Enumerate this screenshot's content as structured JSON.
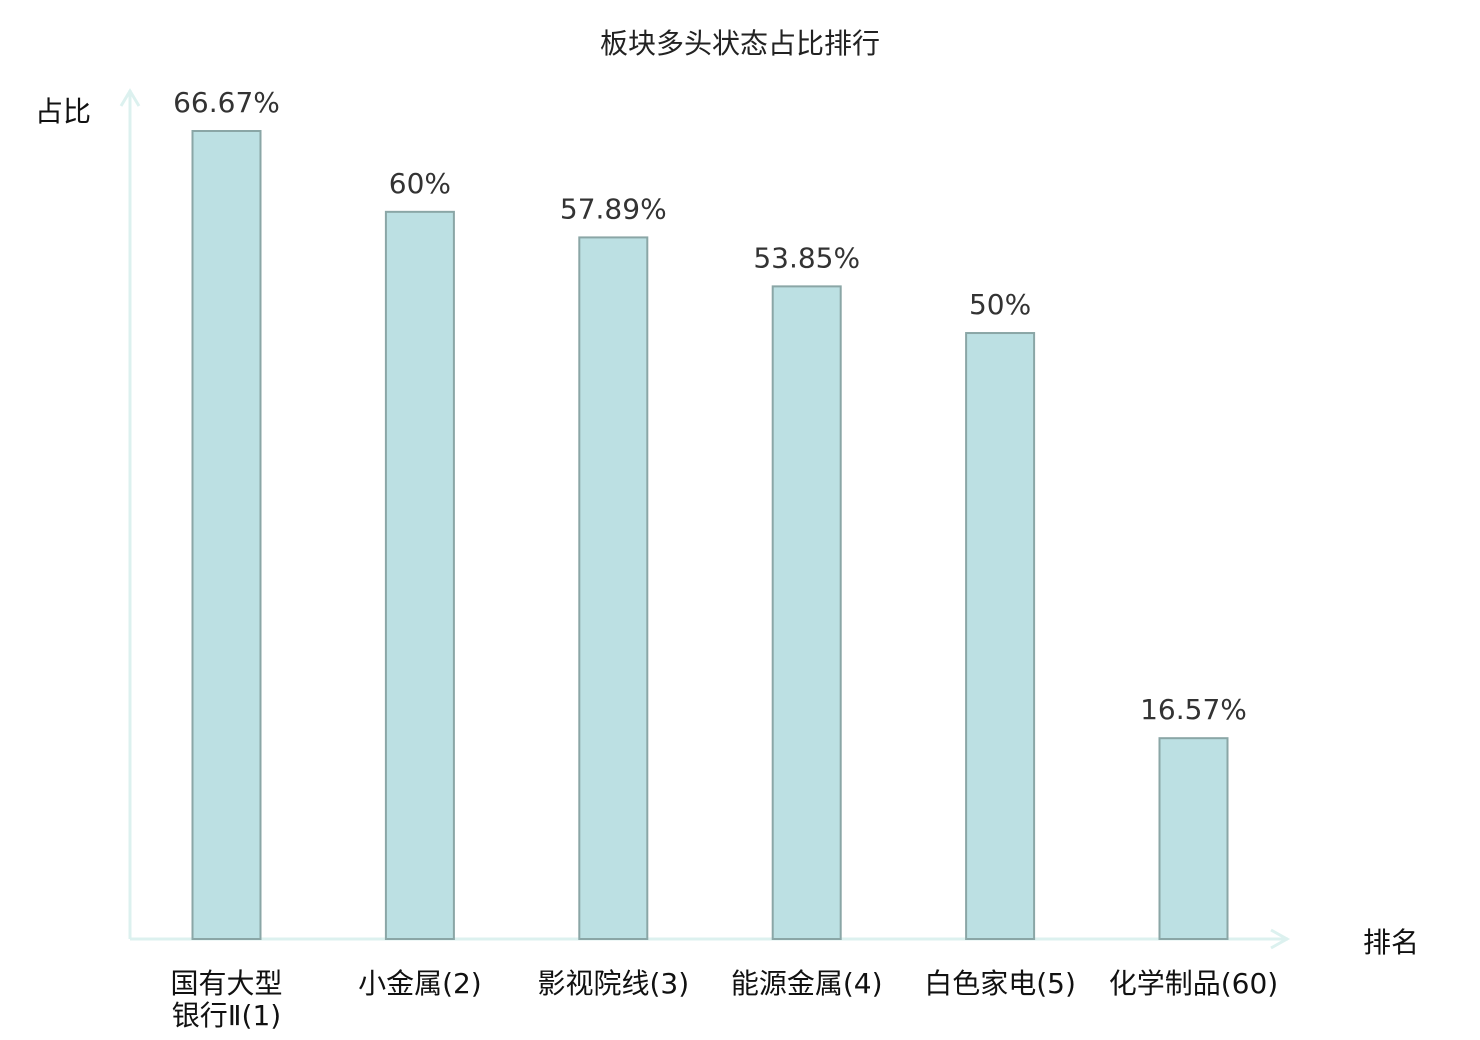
{
  "chart_data": {
    "type": "bar",
    "title": "板块多头状态占比排行",
    "xlabel": "排名",
    "ylabel": "占比",
    "categories": [
      "国有大型银行Ⅱ(1)",
      "小金属(2)",
      "影视院线(3)",
      "能源金属(4)",
      "白色家电(5)",
      "化学制品(60)"
    ],
    "values": [
      66.67,
      60,
      57.89,
      53.85,
      50,
      16.57
    ],
    "data_labels": [
      "66.67%",
      "60%",
      "57.89%",
      "53.85%",
      "50%",
      "16.57%"
    ],
    "highlight_category_index": 5,
    "ylim": [
      0,
      70
    ],
    "grid": false,
    "colors": {
      "bar_fill": "#bce0e3",
      "bar_stroke": "#8aa6a6",
      "axis": "#dcf1ef",
      "highlight_label": "#e8141a",
      "label": "#111111"
    }
  }
}
